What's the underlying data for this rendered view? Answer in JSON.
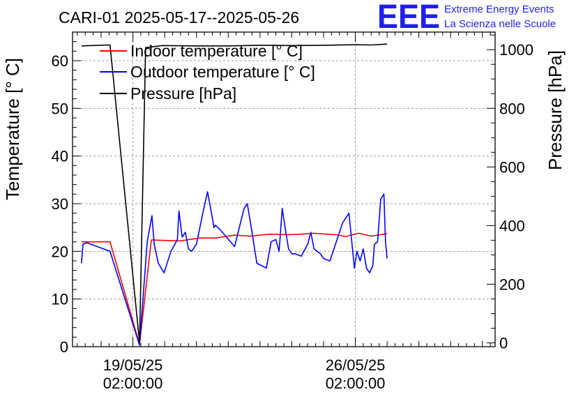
{
  "chart_data": {
    "type": "line",
    "title": "CARI-01 2025-05-17--2025-05-26",
    "ylabel": "Temperature [° C]",
    "y2label": "Pressure [hPa]",
    "ylim": [
      0,
      66
    ],
    "y2lim": [
      -13,
      1060
    ],
    "xlim": [
      -1.9,
      11.4
    ],
    "x_unit": "days since 19/05/25 02:00:00",
    "x_ticks": [
      {
        "x": 0,
        "line1": "19/05/25",
        "line2": "02:00:00"
      },
      {
        "x": 7,
        "line1": "26/05/25",
        "line2": "02:00:00"
      }
    ],
    "y_ticks": [
      0,
      10,
      20,
      30,
      40,
      50,
      60
    ],
    "y2_ticks": [
      0,
      200,
      400,
      600,
      800,
      1000
    ],
    "grid": true,
    "legend": {
      "position": "top-left",
      "entries": [
        {
          "label": "Indoor temperature [° C]",
          "color": "#ff0000"
        },
        {
          "label": "Outdoor temperature [° C]",
          "color": "#0000ff"
        },
        {
          "label": "Pressure [hPa]",
          "color": "#000000"
        }
      ]
    },
    "series": [
      {
        "name": "Indoor temperature [° C]",
        "axis": "left",
        "color": "#ff0000",
        "x": [
          -1.62,
          -0.72,
          0.21,
          0.58,
          0.93,
          1.5,
          2.1,
          2.6,
          3.2,
          3.7,
          4.3,
          4.9,
          5.3,
          5.7,
          6.1,
          6.4,
          6.7,
          7.1,
          7.5,
          7.9,
          8.0
        ],
        "y": [
          22.0,
          22.0,
          0.5,
          22.4,
          22.3,
          22.2,
          22.8,
          22.8,
          23.4,
          23.2,
          23.6,
          23.5,
          23.6,
          23.8,
          23.6,
          23.5,
          23.1,
          23.8,
          23.2,
          23.6,
          23.8
        ]
      },
      {
        "name": "Outdoor temperature [° C]",
        "axis": "left",
        "color": "#0000ff",
        "x": [
          -1.62,
          -1.57,
          -1.45,
          -0.72,
          0.21,
          0.45,
          0.6,
          0.67,
          0.8,
          0.98,
          1.2,
          1.4,
          1.45,
          1.55,
          1.65,
          1.75,
          1.85,
          2.0,
          2.2,
          2.35,
          2.5,
          2.55,
          2.6,
          2.75,
          3.2,
          3.5,
          3.6,
          3.75,
          3.9,
          4.05,
          4.2,
          4.35,
          4.5,
          4.6,
          4.7,
          4.8,
          4.9,
          5.0,
          5.1,
          5.3,
          5.5,
          5.6,
          5.7,
          5.8,
          5.9,
          6.0,
          6.2,
          6.4,
          6.6,
          6.8,
          6.97,
          7.05,
          7.15,
          7.25,
          7.35,
          7.45,
          7.55,
          7.6,
          7.7,
          7.8,
          7.9,
          7.95,
          8.0
        ],
        "y": [
          17.5,
          21.5,
          21.8,
          20.0,
          0.3,
          22.0,
          27.5,
          21.5,
          17.5,
          15.5,
          20.0,
          22.5,
          28.5,
          23.0,
          24.0,
          20.5,
          20.0,
          21.5,
          28.0,
          32.5,
          27.0,
          25.0,
          25.5,
          24.5,
          21.0,
          29.0,
          30.0,
          24.0,
          17.5,
          17.0,
          16.5,
          22.0,
          22.5,
          20.0,
          29.0,
          24.5,
          20.5,
          19.5,
          19.5,
          19.0,
          21.5,
          24.0,
          20.5,
          20.0,
          19.5,
          18.5,
          18.0,
          22.0,
          26.0,
          28.0,
          16.5,
          20.0,
          18.0,
          20.5,
          16.5,
          15.5,
          17.0,
          21.5,
          22.0,
          31.0,
          32.0,
          22.0,
          18.5
        ]
      },
      {
        "name": "Pressure [hPa]",
        "axis": "right",
        "color": "#000000",
        "x": [
          -1.62,
          -0.72,
          0.21,
          0.4,
          0.93,
          2.0,
          3.0,
          4.0,
          5.0,
          6.0,
          7.0,
          7.5,
          8.0
        ],
        "y": [
          1013,
          1016,
          0,
          1007,
          1014,
          1013,
          1013,
          1015,
          1014,
          1015,
          1017,
          1016,
          1019
        ]
      }
    ]
  },
  "logo": {
    "mark": "EEE",
    "line1": "Extreme Energy Events",
    "line2": "La Scienza nelle Scuole",
    "color": "#1f1ff0"
  }
}
